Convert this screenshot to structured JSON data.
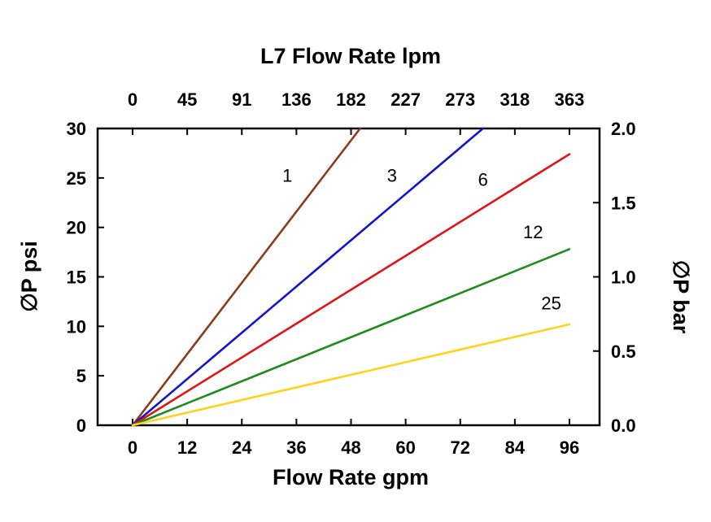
{
  "chart_data": {
    "type": "line",
    "title": "",
    "top_axis": {
      "title": "L7 Flow Rate lpm",
      "ticks": [
        "0",
        "45",
        "91",
        "136",
        "182",
        "227",
        "273",
        "318",
        "363"
      ]
    },
    "xlabel": "Flow Rate gpm",
    "x_ticks": [
      "0",
      "12",
      "24",
      "36",
      "48",
      "60",
      "72",
      "84",
      "96"
    ],
    "x_tick_values": [
      0,
      12,
      24,
      36,
      48,
      60,
      72,
      84,
      96
    ],
    "ylabel_left": "∅P psi",
    "y_ticks_left": [
      "0",
      "5",
      "10",
      "15",
      "20",
      "25",
      "30"
    ],
    "y_tick_values_left": [
      0,
      5,
      10,
      15,
      20,
      25,
      30
    ],
    "ylabel_right": "∅P bar",
    "y_ticks_right": [
      "0.0",
      "0.5",
      "1.0",
      "1.5",
      "2.0"
    ],
    "y_tick_values_right_psi": [
      0,
      7.5,
      15,
      22.5,
      30
    ],
    "xlim": [
      0,
      96
    ],
    "ylim": [
      0,
      30
    ],
    "grid": false,
    "legend": "none",
    "axis_color": "#000000",
    "series": [
      {
        "name": "1",
        "color": "#8B3A1A",
        "points": [
          [
            0,
            0
          ],
          [
            50,
            30
          ]
        ],
        "label_pos": [
          34,
          24.6
        ]
      },
      {
        "name": "3",
        "color": "#1414CC",
        "points": [
          [
            0,
            0
          ],
          [
            77,
            30
          ]
        ],
        "label_pos": [
          57,
          24.6
        ]
      },
      {
        "name": "6",
        "color": "#E11414",
        "points": [
          [
            0,
            0
          ],
          [
            96,
            27.4
          ]
        ],
        "label_pos": [
          77,
          24.2
        ]
      },
      {
        "name": "12",
        "color": "#1F8A1F",
        "points": [
          [
            0,
            0
          ],
          [
            96,
            17.8
          ]
        ],
        "label_pos": [
          88,
          18.9
        ]
      },
      {
        "name": "25",
        "color": "#FFD21E",
        "points": [
          [
            0,
            0
          ],
          [
            96,
            10.2
          ]
        ],
        "label_pos": [
          92,
          11.7
        ]
      }
    ]
  }
}
